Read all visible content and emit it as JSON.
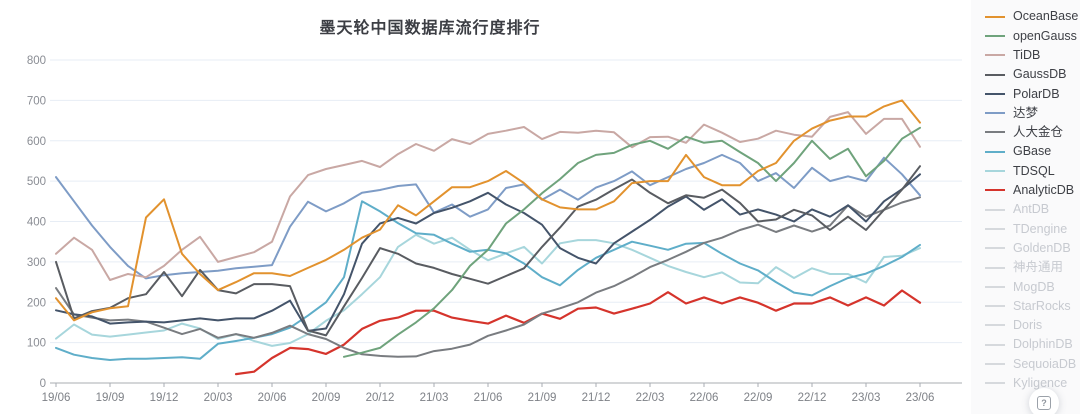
{
  "page": {
    "background": "#ffffff",
    "legend_panel_background": "#fafafb"
  },
  "chart": {
    "title": "墨天轮中国数据库流行度排行",
    "help_button_glyph": "?"
  },
  "style": {
    "gridline_color": "#e7edf5",
    "axis_line_color": "#a9acb1",
    "tick_mark_color": "#a8acb3",
    "y_label_color": "#8a8d94",
    "x_label_color": "#7e8187",
    "title_color": "#3c3e44",
    "legend_active_text_color": "#3e4046",
    "legend_inactive_text_color": "#c7cad0",
    "legend_inactive_line_color": "#d6d9dd"
  },
  "chart_data": {
    "type": "line",
    "title": "墨天轮中国数据库流行度排行",
    "xlabel": "",
    "ylabel": "",
    "ylim": [
      0,
      800
    ],
    "y_gridline_step": 100,
    "grid": "horizontal",
    "legend_position": "right",
    "x_tick_every": 3,
    "x": [
      "19/06",
      "19/07",
      "19/08",
      "19/09",
      "19/10",
      "19/11",
      "19/12",
      "20/01",
      "20/02",
      "20/03",
      "20/04",
      "20/05",
      "20/06",
      "20/07",
      "20/08",
      "20/09",
      "20/10",
      "20/11",
      "20/12",
      "21/01",
      "21/02",
      "21/03",
      "21/04",
      "21/05",
      "21/06",
      "21/07",
      "21/08",
      "21/09",
      "21/10",
      "21/11",
      "21/12",
      "22/01",
      "22/02",
      "22/03",
      "22/04",
      "22/05",
      "22/06",
      "22/07",
      "22/08",
      "22/09",
      "22/10",
      "22/11",
      "22/12",
      "23/01",
      "23/02",
      "23/03",
      "23/04",
      "23/05",
      "23/06"
    ],
    "x_tick_labels": [
      "19/06",
      "19/09",
      "19/12",
      "20/03",
      "20/06",
      "20/09",
      "20/12",
      "21/03",
      "21/06",
      "21/09",
      "21/12",
      "22/03",
      "22/06",
      "22/09",
      "22/12",
      "23/03",
      "23/06"
    ],
    "series": [
      {
        "name": "OceanBase",
        "color": "#e2922e",
        "values": [
          210,
          155,
          175,
          185,
          190,
          410,
          455,
          320,
          270,
          230,
          250,
          272,
          272,
          265,
          285,
          305,
          330,
          360,
          380,
          440,
          415,
          450,
          485,
          485,
          500,
          525,
          495,
          455,
          435,
          430,
          430,
          450,
          495,
          500,
          500,
          565,
          510,
          490,
          490,
          525,
          545,
          600,
          630,
          650,
          660,
          660,
          685,
          700,
          645
        ]
      },
      {
        "name": "openGauss",
        "color": "#6fa37c",
        "values": [
          null,
          null,
          null,
          null,
          null,
          null,
          null,
          null,
          null,
          null,
          null,
          null,
          null,
          null,
          null,
          null,
          65,
          75,
          87,
          120,
          150,
          185,
          230,
          290,
          330,
          395,
          430,
          470,
          505,
          545,
          565,
          570,
          590,
          600,
          580,
          610,
          595,
          600,
          572,
          545,
          500,
          545,
          600,
          555,
          580,
          512,
          550,
          605,
          632
        ]
      },
      {
        "name": "TiDB",
        "color": "#c9a8a4",
        "values": [
          320,
          360,
          330,
          255,
          270,
          262,
          290,
          330,
          362,
          300,
          312,
          324,
          350,
          462,
          515,
          530,
          540,
          550,
          535,
          567,
          592,
          575,
          604,
          592,
          617,
          625,
          634,
          604,
          622,
          620,
          625,
          621,
          584,
          609,
          610,
          595,
          640,
          620,
          597,
          605,
          625,
          615,
          610,
          659,
          671,
          617,
          654,
          654,
          585
        ]
      },
      {
        "name": "GaussDB",
        "color": "#595c61",
        "values": [
          300,
          160,
          178,
          186,
          210,
          220,
          275,
          215,
          280,
          230,
          222,
          245,
          245,
          240,
          130,
          118,
          190,
          260,
          334,
          320,
          296,
          285,
          270,
          258,
          246,
          265,
          284,
          337,
          385,
          437,
          454,
          480,
          504,
          471,
          445,
          465,
          459,
          479,
          446,
          400,
          405,
          429,
          415,
          379,
          412,
          379,
          429,
          479,
          537
        ]
      },
      {
        "name": "PolarDB",
        "color": "#44546a",
        "values": [
          180,
          170,
          165,
          147,
          150,
          152,
          150,
          155,
          160,
          155,
          160,
          160,
          179,
          204,
          129,
          135,
          220,
          345,
          395,
          409,
          395,
          421,
          434,
          450,
          471,
          442,
          421,
          392,
          334,
          310,
          296,
          346,
          375,
          404,
          437,
          462,
          429,
          455,
          417,
          430,
          417,
          400,
          430,
          412,
          440,
          400,
          450,
          480,
          517
        ]
      },
      {
        "name": "达梦",
        "color": "#7e9cc6",
        "values": [
          510,
          450,
          390,
          337,
          290,
          259,
          267,
          272,
          275,
          278,
          284,
          288,
          292,
          387,
          449,
          425,
          445,
          471,
          478,
          488,
          492,
          422,
          442,
          412,
          430,
          483,
          492,
          454,
          479,
          454,
          484,
          500,
          524,
          490,
          510,
          530,
          545,
          565,
          545,
          500,
          520,
          483,
          533,
          500,
          512,
          500,
          558,
          517,
          465
        ]
      },
      {
        "name": "人大金仓",
        "color": "#797c80",
        "values": [
          235,
          170,
          162,
          155,
          157,
          152,
          137,
          121,
          134,
          112,
          121,
          112,
          124,
          142,
          121,
          109,
          87,
          71,
          67,
          65,
          66,
          79,
          85,
          95,
          117,
          130,
          145,
          172,
          185,
          200,
          224,
          240,
          262,
          287,
          305,
          325,
          347,
          360,
          379,
          392,
          374,
          390,
          375,
          390,
          440,
          412,
          429,
          447,
          460
        ]
      },
      {
        "name": "GBase",
        "color": "#5faec9",
        "values": [
          87,
          70,
          62,
          57,
          60,
          60,
          62,
          64,
          60,
          97,
          104,
          112,
          121,
          137,
          167,
          200,
          262,
          450,
          425,
          396,
          371,
          367,
          345,
          325,
          330,
          321,
          296,
          262,
          242,
          280,
          310,
          330,
          350,
          340,
          330,
          345,
          347,
          320,
          296,
          279,
          250,
          224,
          217,
          240,
          260,
          271,
          290,
          312,
          342
        ]
      },
      {
        "name": "TDSQL",
        "color": "#a7d6dc",
        "values": [
          110,
          145,
          120,
          115,
          120,
          125,
          130,
          147,
          135,
          109,
          121,
          104,
          92,
          99,
          121,
          154,
          180,
          220,
          262,
          337,
          367,
          345,
          360,
          330,
          304,
          321,
          337,
          296,
          346,
          354,
          354,
          346,
          330,
          310,
          290,
          275,
          262,
          274,
          249,
          247,
          287,
          260,
          284,
          270,
          270,
          249,
          312,
          315,
          334
        ]
      },
      {
        "name": "AnalyticDB",
        "color": "#d5342c",
        "values": [
          null,
          null,
          null,
          null,
          null,
          null,
          null,
          null,
          null,
          null,
          22,
          28,
          62,
          87,
          84,
          72,
          95,
          134,
          154,
          162,
          179,
          179,
          162,
          154,
          147,
          167,
          149,
          172,
          159,
          184,
          187,
          172,
          184,
          197,
          225,
          197,
          212,
          197,
          212,
          199,
          179,
          197,
          197,
          212,
          192,
          212,
          192,
          229,
          199
        ]
      }
    ],
    "inactive_series": [
      {
        "name": "AntDB"
      },
      {
        "name": "TDengine"
      },
      {
        "name": "GoldenDB"
      },
      {
        "name": "神舟通用"
      },
      {
        "name": "MogDB"
      },
      {
        "name": "StarRocks"
      },
      {
        "name": "Doris"
      },
      {
        "name": "DolphinDB"
      },
      {
        "name": "SequoiaDB"
      },
      {
        "name": "Kyligence"
      }
    ]
  }
}
